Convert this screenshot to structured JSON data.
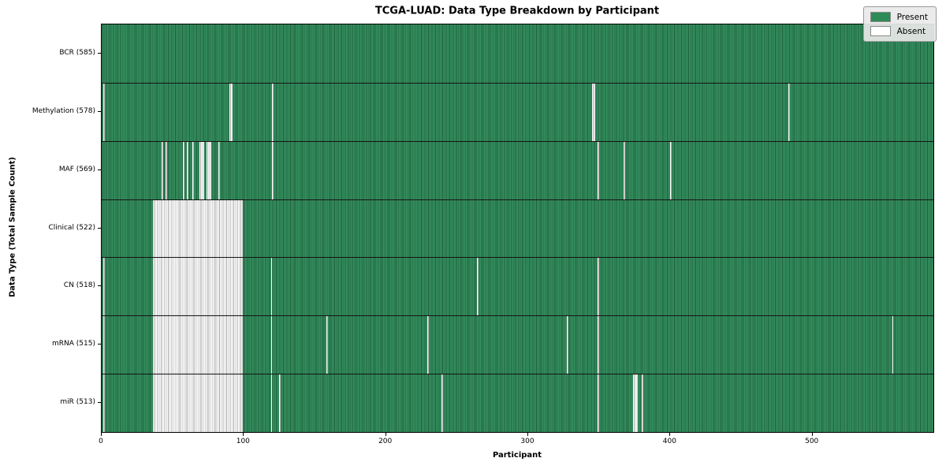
{
  "title": "TCGA-LUAD: Data Type Breakdown by Participant",
  "xlabel": "Participant",
  "ylabel": "Data Type (Total Sample Count)",
  "legend": {
    "present_label": "Present",
    "absent_label": "Absent"
  },
  "colors": {
    "present": "#2e8b57",
    "present_edge": "#1e5e3c",
    "absent": "#ffffff",
    "absent_edge": "#ababab",
    "legend_background": "#e9e9e9"
  },
  "x_ticks": [
    0,
    100,
    200,
    300,
    400,
    500
  ],
  "chart_data": {
    "type": "heatmap",
    "title": "TCGA-LUAD: Data Type Breakdown by Participant",
    "xlabel": "Participant",
    "ylabel": "Data Type (Total Sample Count)",
    "x_range": [
      0,
      585
    ],
    "n_participants": 585,
    "legend": [
      "Present",
      "Absent"
    ],
    "legend_position": "upper right",
    "grid": false,
    "rows": [
      {
        "name": "BCR",
        "label": "BCR (585)",
        "count": 585,
        "absent": []
      },
      {
        "name": "Methylation",
        "label": "Methylation (578)",
        "count": 578,
        "absent": [
          [
            1,
            1
          ],
          [
            90,
            91
          ],
          [
            120,
            120
          ],
          [
            345,
            346
          ],
          [
            483,
            483
          ]
        ]
      },
      {
        "name": "MAF",
        "label": "MAF (569)",
        "count": 569,
        "absent": [
          [
            42,
            42
          ],
          [
            45,
            45
          ],
          [
            57,
            57
          ],
          [
            60,
            60
          ],
          [
            64,
            64
          ],
          [
            69,
            71
          ],
          [
            74,
            76
          ],
          [
            82,
            82
          ],
          [
            120,
            120
          ],
          [
            349,
            349
          ],
          [
            367,
            367
          ],
          [
            400,
            400
          ]
        ]
      },
      {
        "name": "Clinical",
        "label": "Clinical (522)",
        "count": 522,
        "absent": [
          [
            36,
            98
          ]
        ]
      },
      {
        "name": "CN",
        "label": "CN (518)",
        "count": 518,
        "absent": [
          [
            1,
            1
          ],
          [
            36,
            98
          ],
          [
            119,
            119
          ],
          [
            264,
            264
          ],
          [
            349,
            349
          ]
        ]
      },
      {
        "name": "mRNA",
        "label": "mRNA (515)",
        "count": 515,
        "absent": [
          [
            1,
            1
          ],
          [
            36,
            98
          ],
          [
            119,
            119
          ],
          [
            158,
            158
          ],
          [
            229,
            229
          ],
          [
            327,
            327
          ],
          [
            349,
            349
          ],
          [
            556,
            556
          ]
        ]
      },
      {
        "name": "miR",
        "label": "miR (513)",
        "count": 513,
        "absent": [
          [
            1,
            1
          ],
          [
            36,
            98
          ],
          [
            119,
            119
          ],
          [
            125,
            125
          ],
          [
            239,
            239
          ],
          [
            349,
            349
          ],
          [
            374,
            376
          ],
          [
            380,
            380
          ]
        ]
      }
    ]
  }
}
